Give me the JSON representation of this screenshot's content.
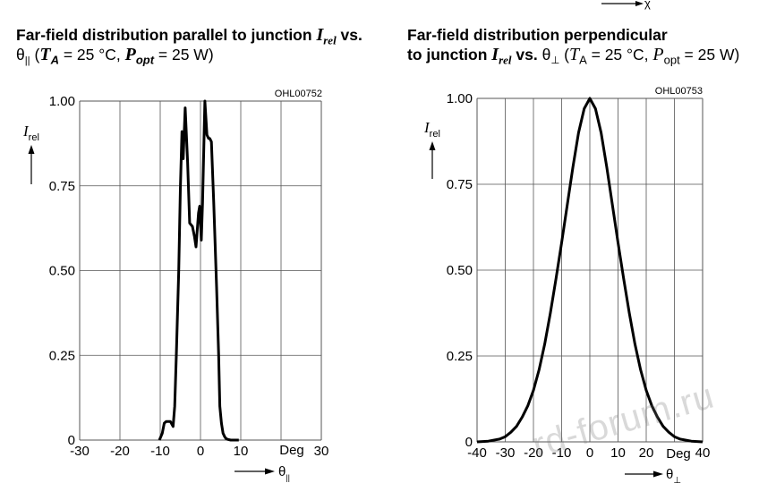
{
  "header_fragment": {
    "symbol": "χ"
  },
  "watermark": "rd-forum.ru",
  "left": {
    "title_line1": "Far-field distribution parallel to junction",
    "title_symbol": "I",
    "title_symbol_sub": "rel",
    "title_vs": " vs.",
    "title_theta": "θ",
    "title_theta_sub": "||",
    "title_cond_open": " (",
    "title_TA": "T",
    "title_TA_sub": "A",
    "title_TA_val": " = 25 °C, ",
    "title_Popt": "P",
    "title_Popt_sub": "opt",
    "title_Popt_val": " = 25 W)",
    "code": "OHL00752",
    "ylabel": "I",
    "ylabel_sub": "rel",
    "xlabel": "θ",
    "xlabel_sub": "||",
    "unit": "Deg"
  },
  "right": {
    "title_line1": "Far-field distribution perpendicular",
    "title_line2a": "to junction ",
    "title_symbol": "I",
    "title_symbol_sub": "rel",
    "title_vs": " vs. ",
    "title_theta": "θ",
    "title_theta_sub": "⊥",
    "title_cond_open": " (",
    "title_TA": "T",
    "title_TA_sub": "A",
    "title_TA_val": " = 25 °C, ",
    "title_Popt": "P",
    "title_Popt_sub": "opt",
    "title_Popt_val": " = 25 W)",
    "code": "OHL00753",
    "ylabel": "I",
    "ylabel_sub": "rel",
    "xlabel": "θ",
    "xlabel_sub": "⊥",
    "unit": "Deg"
  },
  "chart_data": [
    {
      "type": "line",
      "xlim": [
        -30,
        30
      ],
      "ylim": [
        0,
        1
      ],
      "grid": true,
      "x_ticks": [
        "-30",
        "-20",
        "-10",
        "0",
        "10",
        "",
        "30"
      ],
      "y_ticks": [
        "0",
        "0.25",
        "0.50",
        "0.75",
        "1.00"
      ],
      "y_tick_values": [
        0,
        0.25,
        0.5,
        0.75,
        1.0
      ],
      "series": [
        {
          "x": [
            -10.2,
            -9.5,
            -9.0,
            -8.5,
            -7.5,
            -6.8,
            -6.4,
            -6.0,
            -5.4,
            -5.0,
            -4.6,
            -4.3,
            -3.8,
            -3.2,
            -2.7,
            -2.0,
            -1.5,
            -1.1,
            -0.8,
            -0.5,
            -0.2,
            0.2,
            0.5,
            0.8,
            1.1,
            1.6,
            2.0,
            2.3,
            2.7,
            3.3,
            4.0,
            4.5,
            4.8,
            5.2,
            5.6,
            6.0,
            6.3,
            6.7,
            7.5,
            8.5,
            9.5
          ],
          "y": [
            0,
            0.02,
            0.05,
            0.055,
            0.055,
            0.04,
            0.1,
            0.25,
            0.5,
            0.74,
            0.91,
            0.83,
            0.98,
            0.82,
            0.64,
            0.63,
            0.6,
            0.57,
            0.62,
            0.67,
            0.69,
            0.59,
            0.7,
            0.85,
            1.0,
            0.9,
            0.89,
            0.89,
            0.88,
            0.7,
            0.45,
            0.25,
            0.1,
            0.05,
            0.02,
            0.01,
            0.005,
            0.002,
            0,
            0,
            0
          ]
        }
      ]
    },
    {
      "type": "line",
      "xlim": [
        -40,
        40
      ],
      "ylim": [
        0,
        1
      ],
      "grid": true,
      "x_ticks": [
        "-40",
        "-30",
        "-20",
        "-10",
        "0",
        "10",
        "20",
        "",
        "40"
      ],
      "y_ticks": [
        "0",
        "0.25",
        "0.50",
        "0.75",
        "1.00"
      ],
      "y_tick_values": [
        0,
        0.25,
        0.5,
        0.75,
        1.0
      ],
      "series": [
        {
          "x": [
            -40,
            -36,
            -32,
            -30,
            -28,
            -26,
            -24,
            -22,
            -20,
            -18,
            -16,
            -14,
            -12,
            -10,
            -8,
            -6,
            -4,
            -2,
            0,
            2,
            4,
            6,
            8,
            10,
            12,
            14,
            16,
            18,
            20,
            22,
            24,
            26,
            28,
            30,
            32,
            36,
            40
          ],
          "y": [
            0,
            0.002,
            0.008,
            0.015,
            0.028,
            0.045,
            0.072,
            0.105,
            0.15,
            0.21,
            0.285,
            0.375,
            0.475,
            0.58,
            0.69,
            0.8,
            0.9,
            0.97,
            1.0,
            0.97,
            0.9,
            0.8,
            0.69,
            0.58,
            0.475,
            0.375,
            0.285,
            0.21,
            0.15,
            0.105,
            0.072,
            0.045,
            0.028,
            0.015,
            0.008,
            0.002,
            0
          ]
        }
      ]
    }
  ]
}
